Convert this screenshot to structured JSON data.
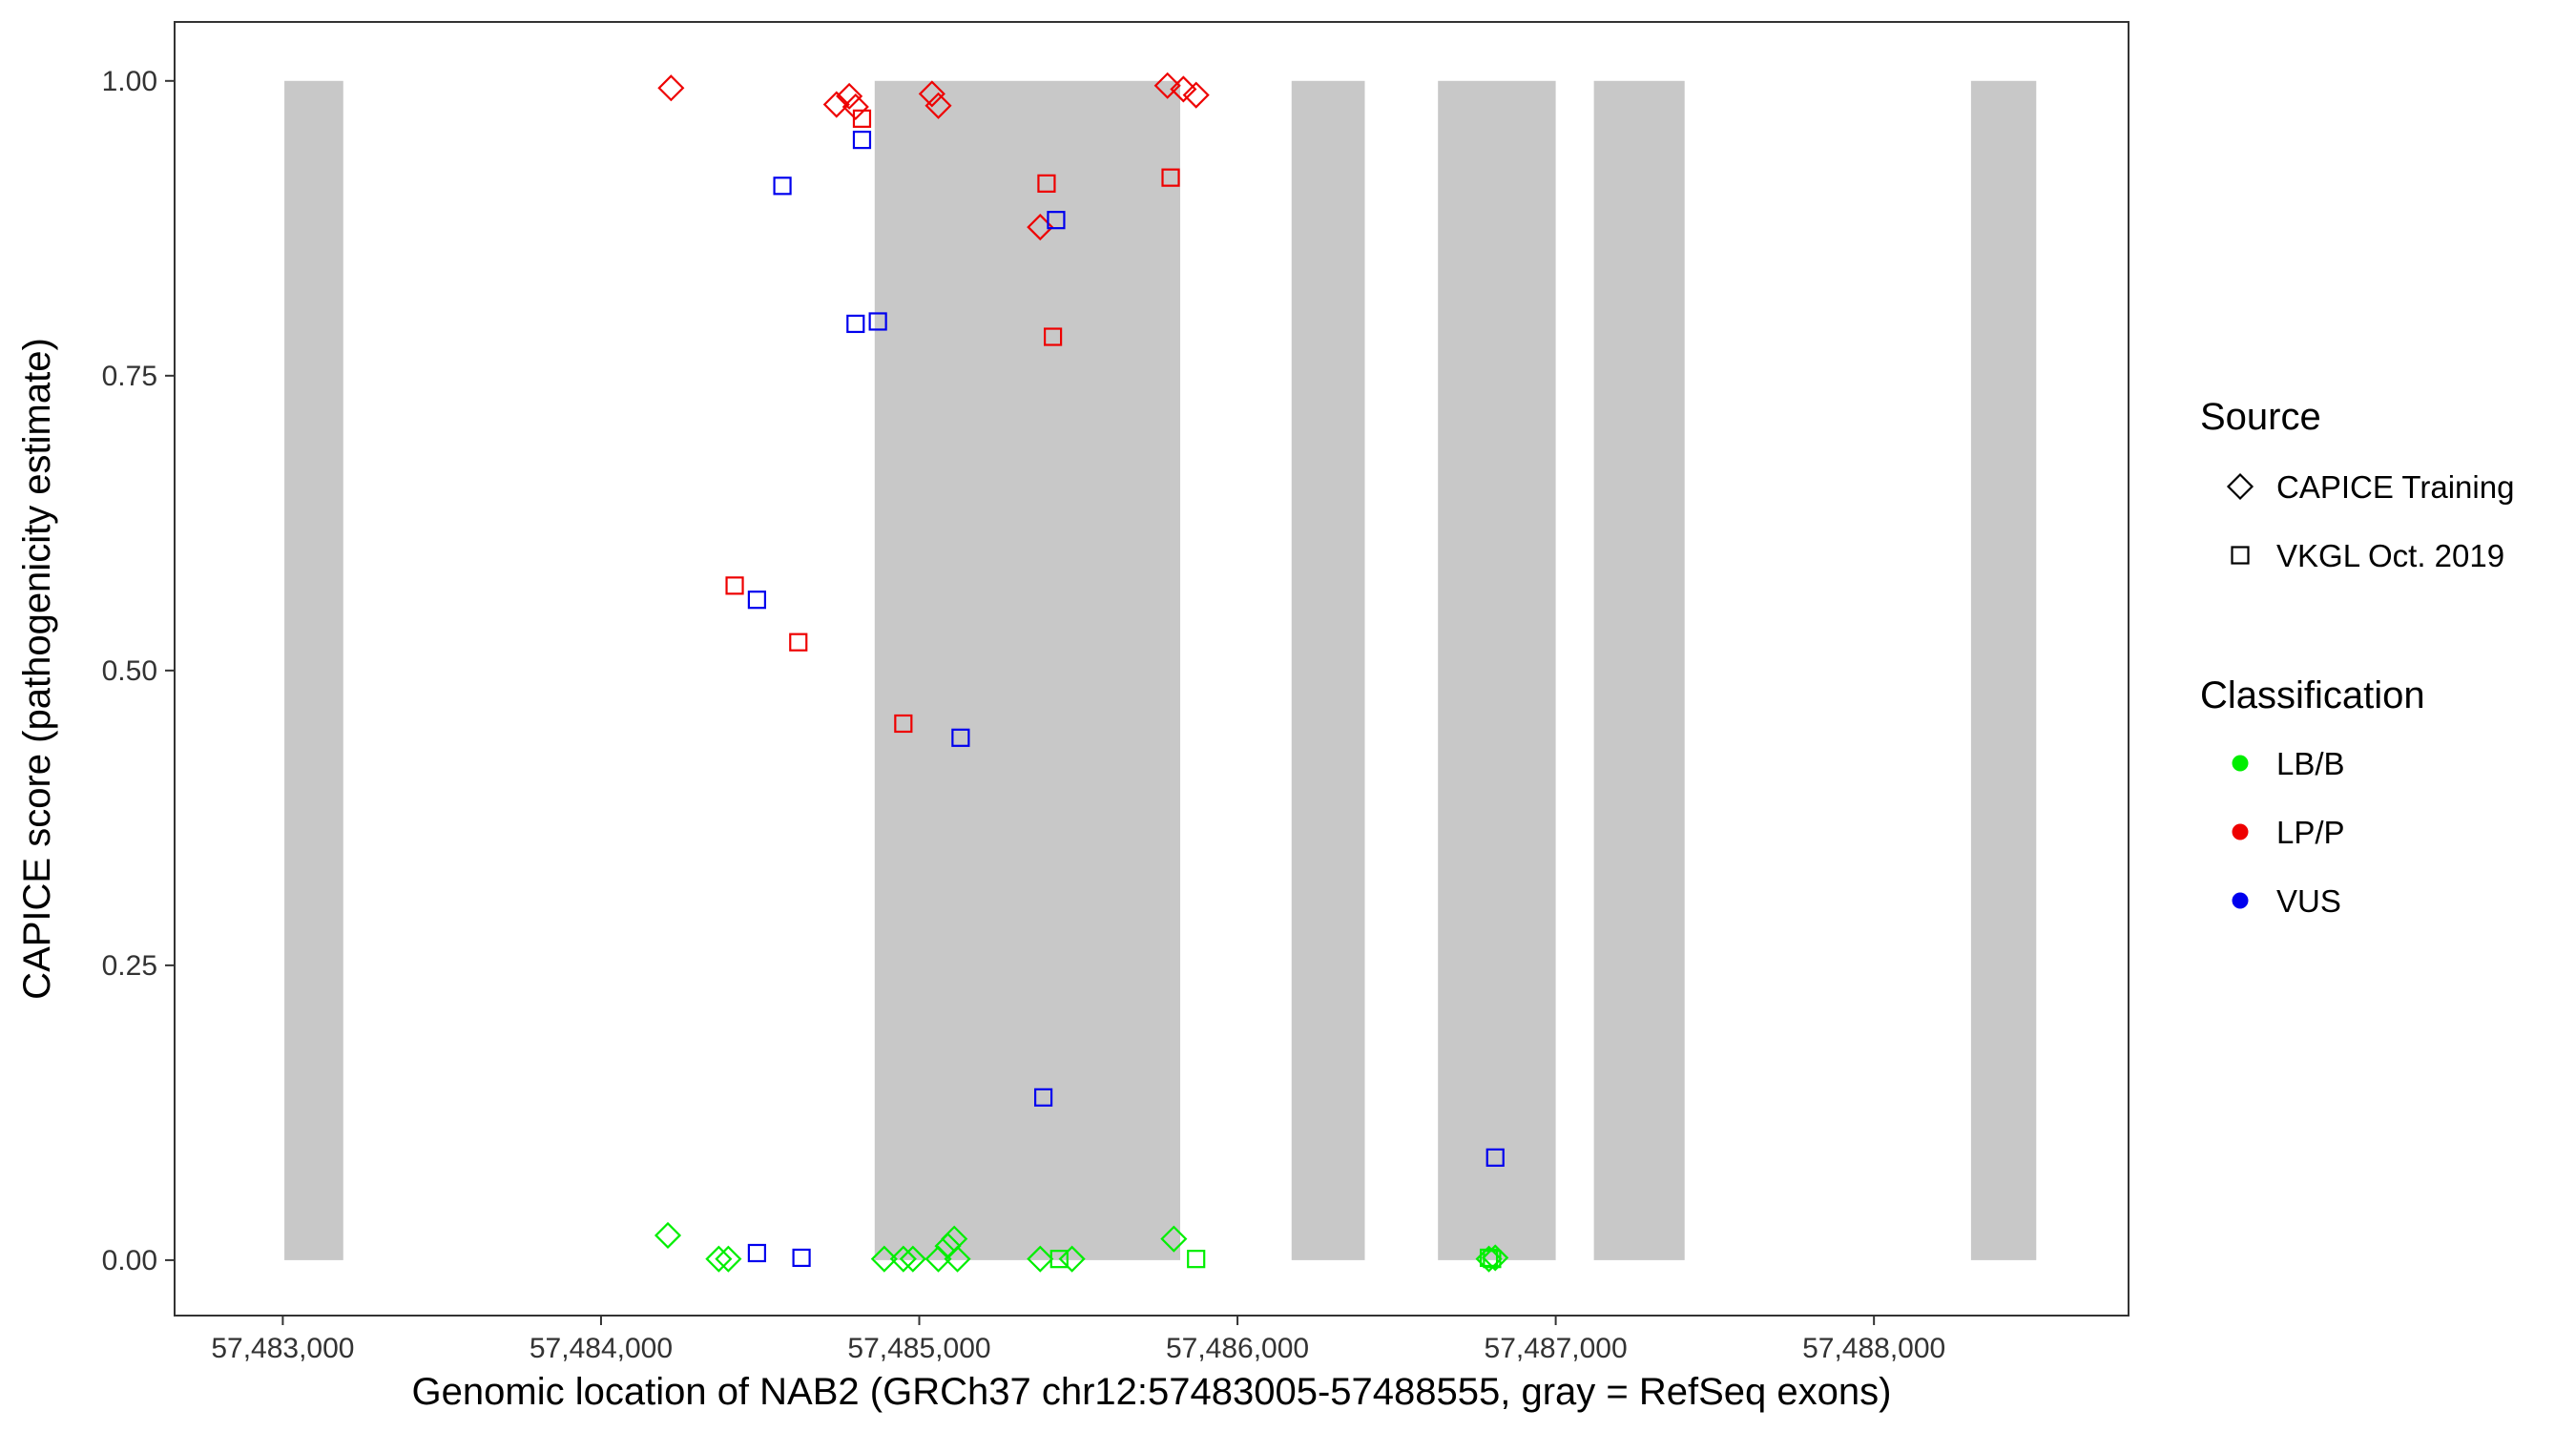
{
  "chart_data": {
    "type": "scatter",
    "xlabel": "Genomic location of NAB2 (GRCh37 chr12:57483005-57488555, gray = RefSeq exons)",
    "ylabel": "CAPICE score (pathogenicity estimate)",
    "xlim": [
      57482660,
      57488800
    ],
    "ylim": [
      -0.047,
      1.05
    ],
    "x_ticks": [
      57483000,
      57484000,
      57485000,
      57486000,
      57487000,
      57488000
    ],
    "x_tick_labels": [
      "57,483,000",
      "57,484,000",
      "57,485,000",
      "57,486,000",
      "57,487,000",
      "57,488,000"
    ],
    "y_ticks": [
      0,
      0.25,
      0.5,
      0.75,
      1.0
    ],
    "y_tick_labels": [
      "0.00",
      "0.25",
      "0.50",
      "0.75",
      "1.00"
    ],
    "grid": false,
    "background_color": "#ffffff",
    "exon_color": "#c8c8c8",
    "exons": [
      {
        "start": 57483005,
        "end": 57483190
      },
      {
        "start": 57484860,
        "end": 57485820
      },
      {
        "start": 57486170,
        "end": 57486400
      },
      {
        "start": 57486630,
        "end": 57487000
      },
      {
        "start": 57487120,
        "end": 57487405
      },
      {
        "start": 57488305,
        "end": 57488510
      }
    ],
    "legend": {
      "placement": "right",
      "source_title": "Source",
      "source_items": [
        {
          "label": "CAPICE Training",
          "shape": "diamond"
        },
        {
          "label": "VKGL Oct. 2019",
          "shape": "square"
        }
      ],
      "class_title": "Classification",
      "class_items": [
        {
          "label": "LB/B",
          "color": "#00ee00"
        },
        {
          "label": "LP/P",
          "color": "#ee0000"
        },
        {
          "label": "VUS",
          "color": "#0000ee"
        }
      ]
    },
    "series": [
      {
        "source": "CAPICE Training",
        "classification": "LP/P",
        "points": [
          [
            57484220,
            0.994
          ],
          [
            57484740,
            0.98
          ],
          [
            57484780,
            0.987
          ],
          [
            57484800,
            0.978
          ],
          [
            57485040,
            0.989
          ],
          [
            57485060,
            0.979
          ],
          [
            57485380,
            0.876
          ],
          [
            57485780,
            0.996
          ],
          [
            57485830,
            0.993
          ],
          [
            57485870,
            0.988
          ]
        ]
      },
      {
        "source": "VKGL Oct. 2019",
        "classification": "LP/P",
        "points": [
          [
            57484820,
            0.968
          ],
          [
            57485400,
            0.913
          ],
          [
            57485790,
            0.918
          ],
          [
            57485420,
            0.783
          ],
          [
            57484420,
            0.572
          ],
          [
            57484620,
            0.524
          ],
          [
            57484950,
            0.455
          ]
        ]
      },
      {
        "source": "VKGL Oct. 2019",
        "classification": "VUS",
        "points": [
          [
            57484820,
            0.95
          ],
          [
            57484570,
            0.911
          ],
          [
            57485430,
            0.882
          ],
          [
            57484800,
            0.794
          ],
          [
            57484870,
            0.796
          ],
          [
            57484490,
            0.56
          ],
          [
            57485130,
            0.443
          ],
          [
            57485390,
            0.138
          ],
          [
            57486810,
            0.087
          ],
          [
            57484490,
            0.006
          ],
          [
            57484630,
            0.002
          ]
        ]
      },
      {
        "source": "CAPICE Training",
        "classification": "LB/B",
        "points": [
          [
            57484210,
            0.021
          ],
          [
            57484370,
            0.001
          ],
          [
            57484400,
            0.001
          ],
          [
            57484890,
            0.001
          ],
          [
            57484950,
            0.001
          ],
          [
            57484980,
            0.001
          ],
          [
            57485060,
            0.001
          ],
          [
            57485090,
            0.012
          ],
          [
            57485110,
            0.018
          ],
          [
            57485120,
            0.001
          ],
          [
            57485380,
            0.001
          ],
          [
            57485480,
            0.001
          ],
          [
            57485800,
            0.018
          ],
          [
            57486790,
            0.001
          ],
          [
            57486810,
            0.002
          ]
        ]
      },
      {
        "source": "VKGL Oct. 2019",
        "classification": "LB/B",
        "points": [
          [
            57485440,
            0.001
          ],
          [
            57485870,
            0.001
          ],
          [
            57486790,
            0.002
          ],
          [
            57486800,
            0.001
          ]
        ]
      }
    ]
  }
}
